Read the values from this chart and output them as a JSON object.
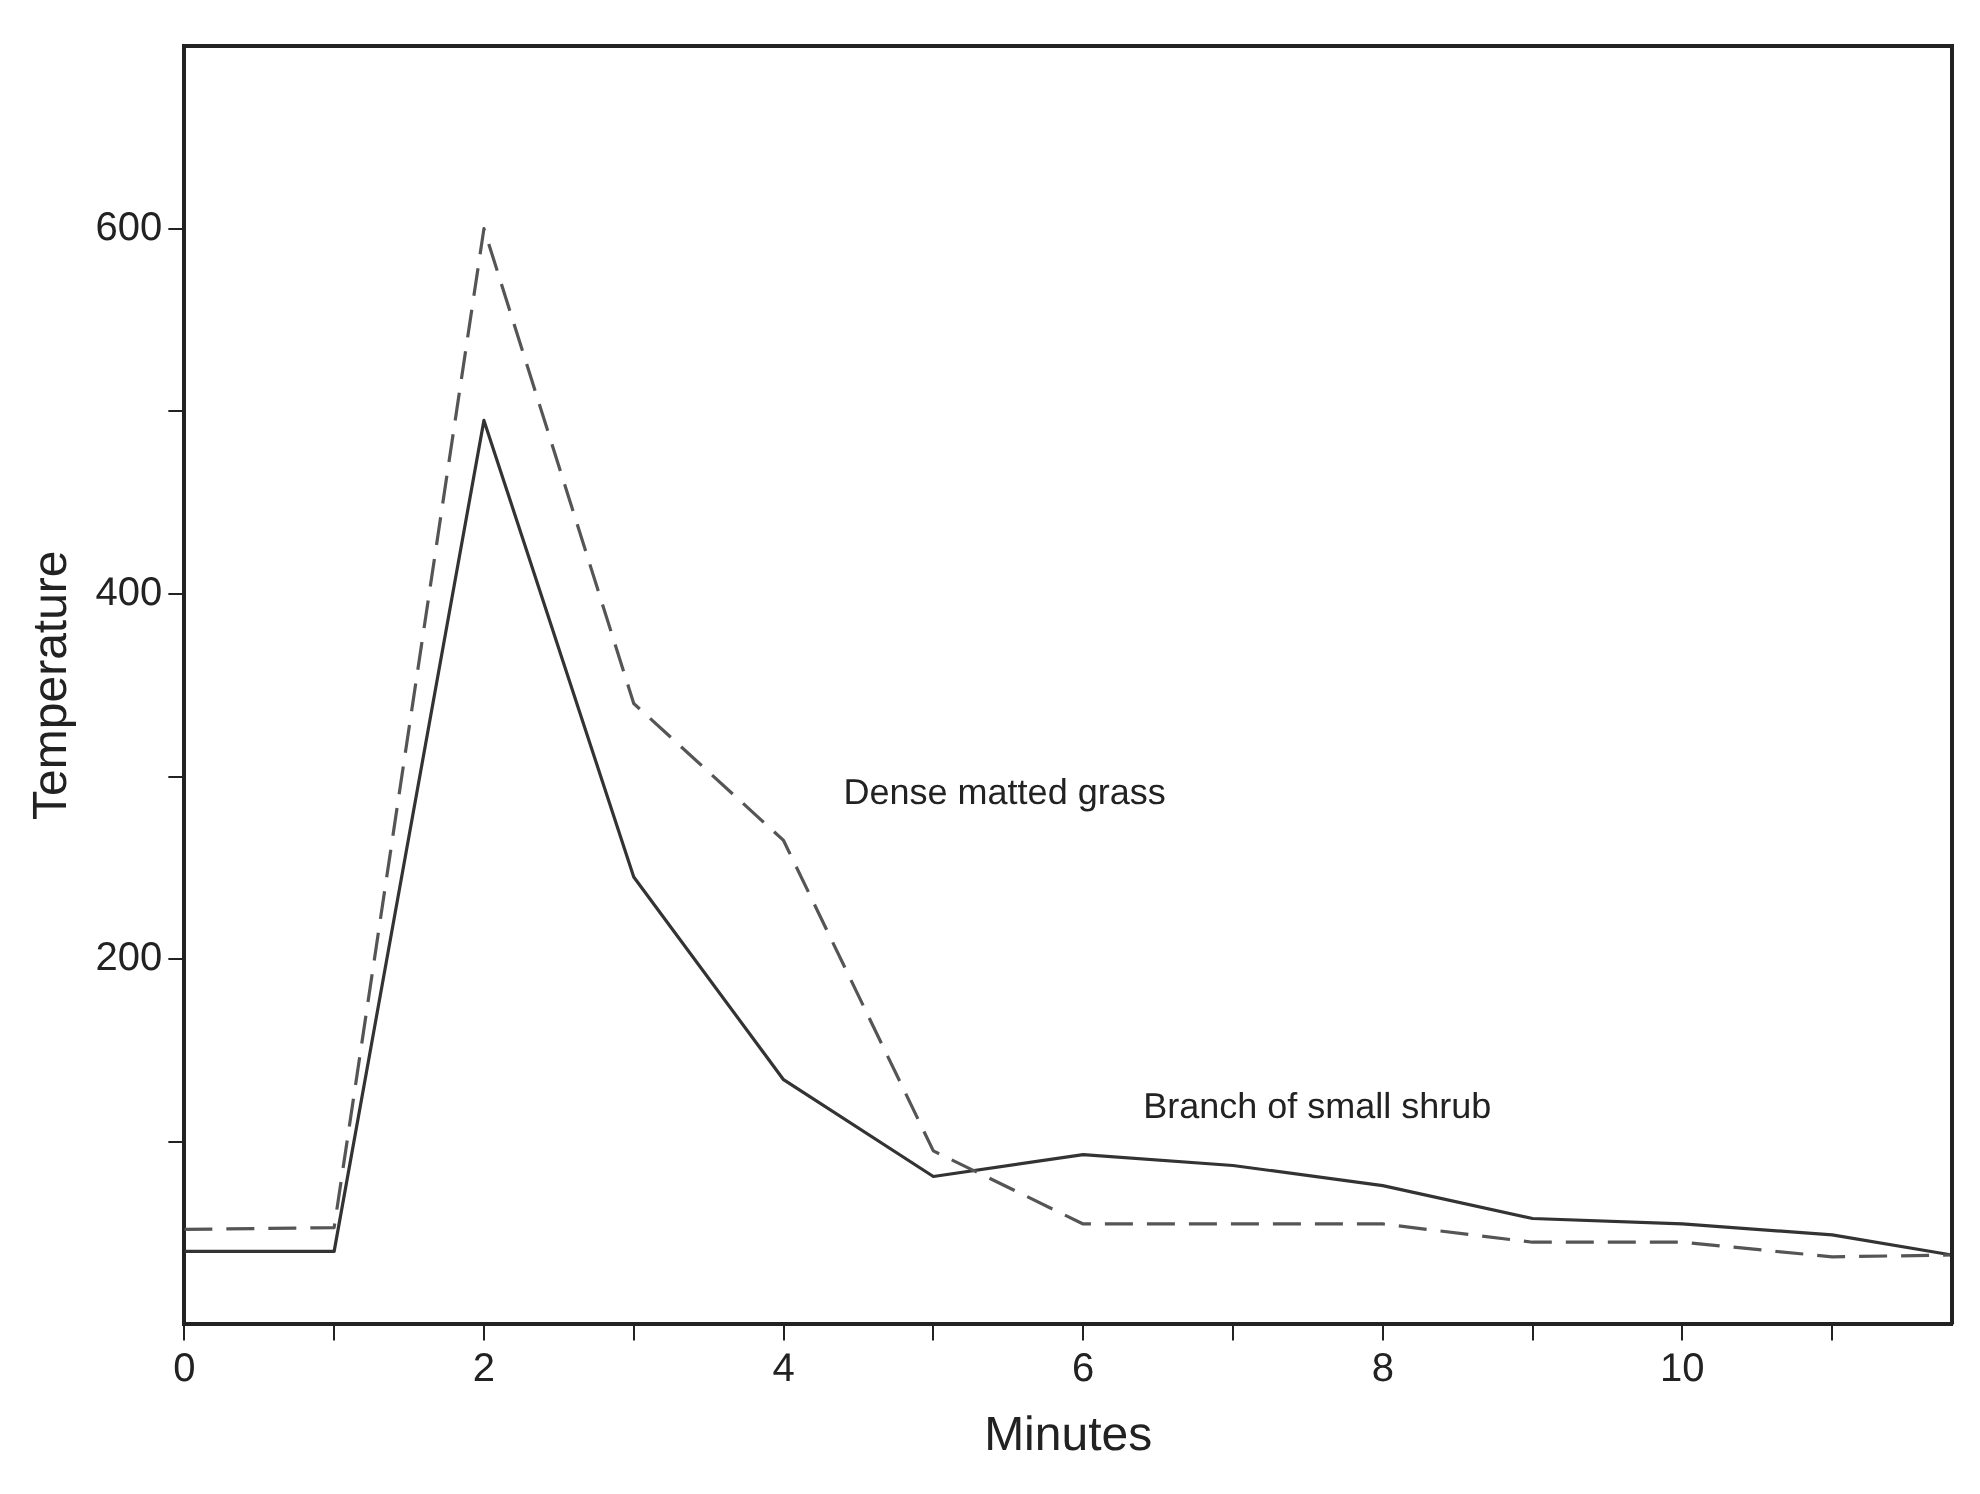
{
  "chart_data": {
    "type": "line",
    "xlabel": "Minutes",
    "ylabel": "Temperature",
    "x": [
      0,
      1,
      2,
      3,
      4,
      5,
      6,
      7,
      8,
      9,
      10,
      11,
      11.8
    ],
    "series": [
      {
        "name": "Dense matted grass",
        "color": "#555555",
        "line_style": "dashed",
        "values": [
          52,
          53,
          600,
          340,
          265,
          95,
          55,
          55,
          55,
          45,
          45,
          37,
          38
        ]
      },
      {
        "name": "Branch of small shrub",
        "color": "#333333",
        "line_style": "solid",
        "values": [
          40,
          40,
          495,
          245,
          134,
          81,
          93,
          87,
          76,
          58,
          55,
          49,
          38
        ]
      }
    ],
    "xlim": [
      0,
      11.8
    ],
    "ylim": [
      0,
      700
    ],
    "xticks": [
      0,
      {
        "value": 1,
        "label": null
      },
      2,
      {
        "value": 3,
        "label": null
      },
      4,
      {
        "value": 5,
        "label": null
      },
      6,
      {
        "value": 7,
        "label": null
      },
      8,
      {
        "value": 9,
        "label": null
      },
      10,
      {
        "value": 11,
        "label": null
      }
    ],
    "yticks": [
      {
        "value": 100,
        "label": null
      },
      200,
      {
        "value": 300,
        "label": null
      },
      400,
      {
        "value": 500,
        "label": null
      },
      600
    ],
    "marker": "none",
    "grid": false,
    "legend": false
  }
}
